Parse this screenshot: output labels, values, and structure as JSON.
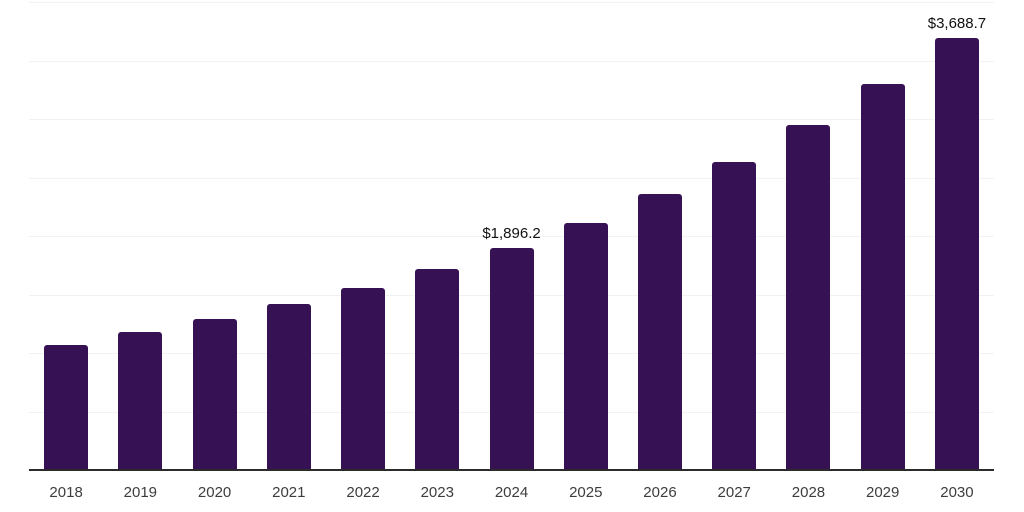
{
  "chart_data": {
    "type": "bar",
    "title": "",
    "xlabel": "",
    "ylabel": "",
    "categories": [
      "2018",
      "2019",
      "2020",
      "2021",
      "2022",
      "2023",
      "2024",
      "2025",
      "2026",
      "2027",
      "2028",
      "2029",
      "2030"
    ],
    "values": [
      1070,
      1180,
      1290,
      1420,
      1555,
      1720,
      1896.2,
      2115,
      2355,
      2630,
      2950,
      3300,
      3688.7
    ],
    "data_labels": [
      "",
      "",
      "",
      "",
      "",
      "",
      "$1,896.2",
      "",
      "",
      "",
      "",
      "",
      "$3,688.7"
    ],
    "ylim": [
      0,
      4000
    ],
    "gridline_step": 500,
    "grid": "horizontal-light",
    "legend_position": "none",
    "y_tick_labels_shown": false,
    "value_prefix": "$",
    "colors": {
      "bar": "#361254",
      "gridline": "#f2f1f4",
      "axis_line": "#2b2b2b",
      "tick_label": "#3d3d3d",
      "value_label": "#111111",
      "background": "#ffffff"
    }
  }
}
